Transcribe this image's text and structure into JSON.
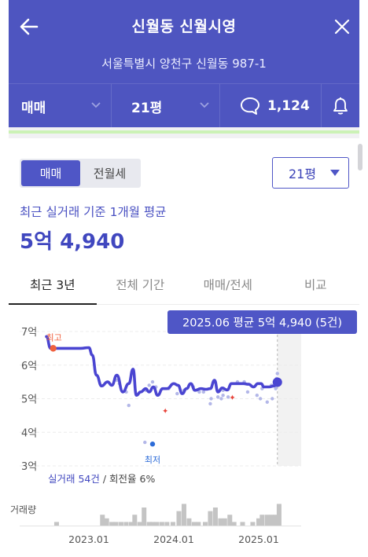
{
  "header": {
    "title": "신월동 신월시영",
    "address": "서울특별시 양천구 신월동 987-1",
    "back_icon": "arrow-left-icon",
    "close_icon": "close-icon",
    "trade_type": "매매",
    "area": "21평",
    "comment_count": "1,124",
    "bell_icon": "bell-icon"
  },
  "filters": {
    "segment": [
      "매매",
      "전월세"
    ],
    "selected_segment": "매매",
    "size_value": "21평"
  },
  "summary": {
    "caption": "최근 실거래 기준 1개월 평균",
    "price": "5억 4,940"
  },
  "tabs": [
    "최근 3년",
    "전체 기간",
    "매매/전세",
    "비교"
  ],
  "chart_data": {
    "type": "line",
    "tooltip": "2025.06 평균 5억 4,940 (5건)",
    "y_ticks": [
      "7억",
      "6억",
      "5억",
      "4억",
      "3억"
    ],
    "x_ticks": [
      "2023.01",
      "2024.01",
      "2025.01"
    ],
    "ylim": [
      3.0,
      7.0
    ],
    "y_unit": "억",
    "x_range": [
      2022.5,
      2025.5
    ],
    "high_label": "최고",
    "low_label": "최저",
    "volume_label": "거래량",
    "stats_prefix": "실거래 ",
    "stats_count": "54건",
    "stats_suffix": " / 회전율 6%",
    "colors": {
      "line": "#4a45d1",
      "scatter": "#b3b7e8",
      "high": "#f0603e",
      "low": "#2d6cd8",
      "volume": "#c4c4c4",
      "tooltip_bg": "#4f56c6"
    },
    "average_line": [
      [
        2022.5,
        6.85
      ],
      [
        2022.55,
        6.5
      ],
      [
        2022.65,
        6.5
      ],
      [
        2022.9,
        6.5
      ],
      [
        2023.0,
        6.52
      ],
      [
        2023.04,
        6.3
      ],
      [
        2023.09,
        5.7
      ],
      [
        2023.15,
        5.38
      ],
      [
        2023.22,
        5.5
      ],
      [
        2023.27,
        5.4
      ],
      [
        2023.33,
        5.7
      ],
      [
        2023.4,
        5.2
      ],
      [
        2023.47,
        5.45
      ],
      [
        2023.52,
        5.88
      ],
      [
        2023.56,
        5.1
      ],
      [
        2023.61,
        5.2
      ],
      [
        2023.67,
        5.3
      ],
      [
        2023.71,
        5.2
      ],
      [
        2023.76,
        5.35
      ],
      [
        2023.81,
        5.1
      ],
      [
        2023.87,
        5.3
      ],
      [
        2023.92,
        5.3
      ],
      [
        2024.0,
        5.45
      ],
      [
        2024.05,
        5.4
      ],
      [
        2024.1,
        5.15
      ],
      [
        2024.15,
        5.3
      ],
      [
        2024.2,
        5.45
      ],
      [
        2024.25,
        5.25
      ],
      [
        2024.32,
        5.3
      ],
      [
        2024.38,
        5.28
      ],
      [
        2024.43,
        5.3
      ],
      [
        2024.48,
        5.55
      ],
      [
        2024.52,
        5.2
      ],
      [
        2024.57,
        5.32
      ],
      [
        2024.63,
        5.26
      ],
      [
        2024.68,
        5.45
      ],
      [
        2024.75,
        5.45
      ],
      [
        2024.82,
        5.45
      ],
      [
        2024.88,
        5.43
      ],
      [
        2024.94,
        5.35
      ],
      [
        2024.99,
        5.45
      ],
      [
        2025.03,
        5.45
      ],
      [
        2025.06,
        5.35
      ],
      [
        2025.12,
        5.35
      ],
      [
        2025.18,
        5.38
      ],
      [
        2025.22,
        5.49
      ]
    ],
    "transactions": [
      [
        2023.33,
        5.55
      ],
      [
        2023.36,
        5.45
      ],
      [
        2023.44,
        5.2
      ],
      [
        2023.47,
        4.8
      ],
      [
        2023.67,
        5.25
      ],
      [
        2023.71,
        5.4
      ],
      [
        2023.75,
        5.5
      ],
      [
        2023.79,
        5.35
      ],
      [
        2023.94,
        5.3
      ],
      [
        2024.04,
        5.15
      ],
      [
        2024.12,
        5.25
      ],
      [
        2024.23,
        5.35
      ],
      [
        2024.3,
        5.2
      ],
      [
        2024.35,
        5.2
      ],
      [
        2024.43,
        4.85
      ],
      [
        2024.44,
        5.0
      ],
      [
        2024.52,
        5.05
      ],
      [
        2024.56,
        5.0
      ],
      [
        2024.58,
        5.1
      ],
      [
        2024.58,
        5.25
      ],
      [
        2024.64,
        5.05
      ],
      [
        2024.75,
        5.5
      ],
      [
        2024.83,
        5.5
      ],
      [
        2024.87,
        5.2
      ],
      [
        2024.98,
        5.1
      ],
      [
        2025.02,
        5.0
      ],
      [
        2025.04,
        5.3
      ],
      [
        2025.1,
        4.9
      ],
      [
        2025.15,
        5.4
      ],
      [
        2025.16,
        5.0
      ],
      [
        2025.21,
        5.6
      ],
      [
        2025.22,
        5.75
      ],
      [
        2025.22,
        5.55
      ],
      [
        2025.2,
        5.4
      ],
      [
        2025.2,
        5.3
      ],
      [
        2023.66,
        3.7
      ]
    ],
    "high_point": [
      2022.58,
      6.5
    ],
    "low_point": [
      2023.75,
      3.65
    ],
    "special_marks": [
      [
        2023.9,
        4.65
      ],
      [
        2024.69,
        5.05
      ]
    ],
    "tooltip_x": 2025.22,
    "future_band": [
      2025.22,
      2025.5
    ],
    "volume": [
      [
        2022.62,
        1
      ],
      [
        2023.16,
        3
      ],
      [
        2023.21,
        2
      ],
      [
        2023.27,
        1
      ],
      [
        2023.32,
        1
      ],
      [
        2023.38,
        1
      ],
      [
        2023.44,
        1
      ],
      [
        2023.5,
        1
      ],
      [
        2023.54,
        3
      ],
      [
        2023.6,
        1
      ],
      [
        2023.65,
        5
      ],
      [
        2023.71,
        1
      ],
      [
        2023.75,
        1
      ],
      [
        2023.8,
        1
      ],
      [
        2023.86,
        1
      ],
      [
        2023.92,
        1
      ],
      [
        2023.99,
        1
      ],
      [
        2024.06,
        4
      ],
      [
        2024.12,
        6
      ],
      [
        2024.18,
        2
      ],
      [
        2024.24,
        1
      ],
      [
        2024.29,
        1
      ],
      [
        2024.37,
        1
      ],
      [
        2024.43,
        4
      ],
      [
        2024.49,
        5
      ],
      [
        2024.55,
        2
      ],
      [
        2024.6,
        2
      ],
      [
        2024.66,
        3
      ],
      [
        2024.71,
        1
      ],
      [
        2024.81,
        1
      ],
      [
        2024.93,
        1
      ],
      [
        2025.0,
        2
      ],
      [
        2025.04,
        3
      ],
      [
        2025.1,
        3
      ],
      [
        2025.15,
        3
      ],
      [
        2025.2,
        3
      ],
      [
        2025.24,
        6
      ]
    ]
  }
}
